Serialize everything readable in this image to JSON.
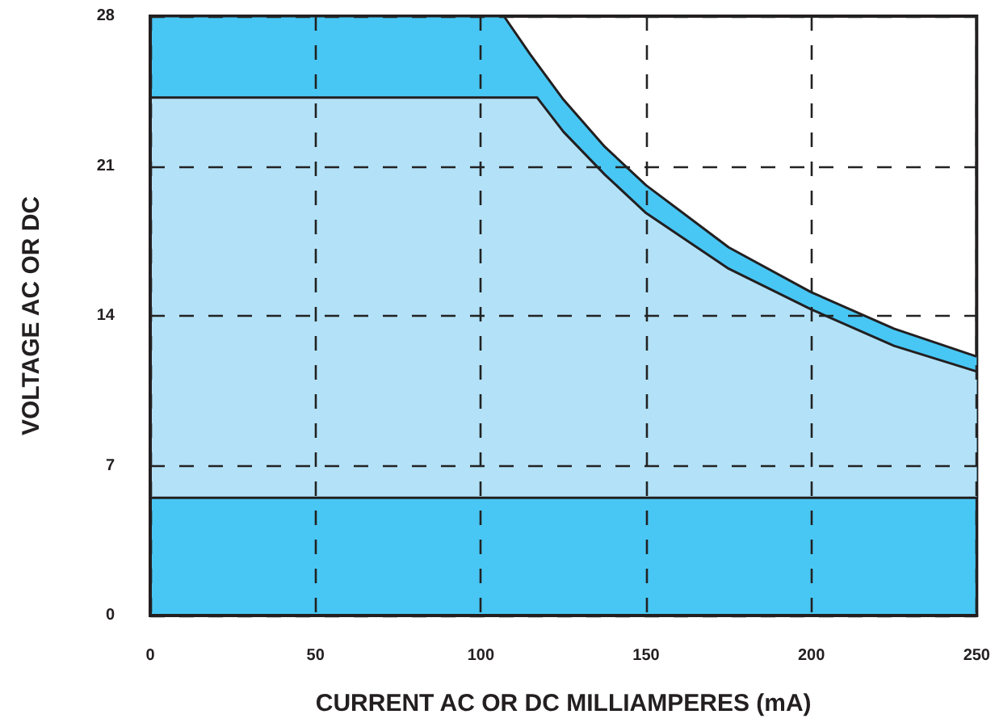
{
  "chart_data": {
    "type": "area",
    "xlabel": "CURRENT AC OR DC MILLIAMPERES (mA)",
    "ylabel": "VOLTAGE AC OR DC",
    "xlim": [
      0,
      250
    ],
    "ylim": [
      0,
      28
    ],
    "xticks": [
      0,
      50,
      100,
      150,
      200,
      250
    ],
    "yticks": [
      0,
      7,
      14,
      21,
      28
    ],
    "grid": true,
    "marker": "none",
    "line_style": "solid",
    "series": [
      {
        "color": "#48c7f4",
        "x": [
          0,
          107,
          115,
          125,
          137.5,
          150,
          175,
          200,
          225,
          250
        ],
        "values": [
          28,
          28,
          26.2,
          24.1,
          21.9,
          20.1,
          17.2,
          15.1,
          13.4,
          12.1
        ]
      },
      {
        "color": "#b3e2f8",
        "x": [
          0,
          117,
          125,
          137.5,
          150,
          175,
          200,
          225,
          250
        ],
        "values": [
          24.2,
          24.2,
          22.6,
          20.6,
          18.8,
          16.2,
          14.3,
          12.6,
          11.4
        ]
      }
    ],
    "bands": [
      {
        "axis": "y",
        "from": 0,
        "to": 5.5,
        "color": "#48c7f4"
      }
    ]
  }
}
